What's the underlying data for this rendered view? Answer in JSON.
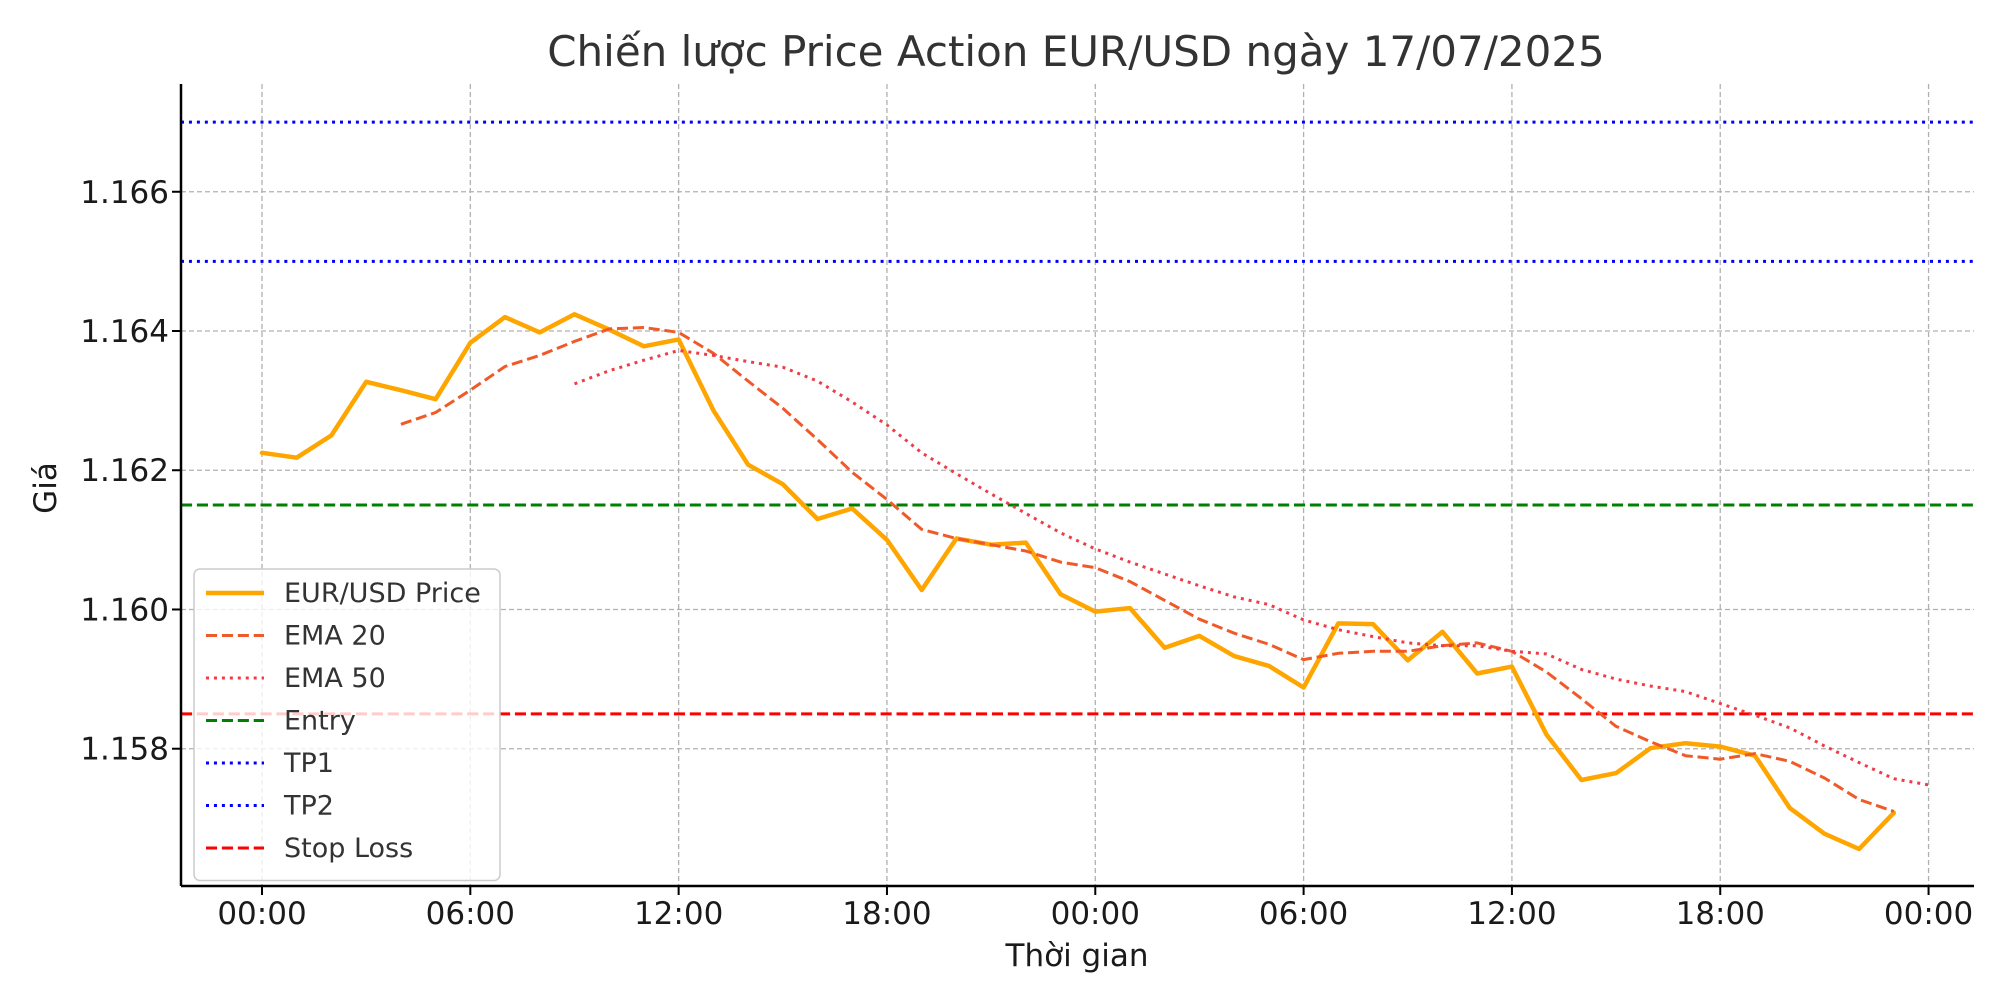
{
  "chart_data": {
    "type": "line",
    "title": "Chiến lược Price Action EUR/USD ngày 17/07/2025",
    "xlabel": "Thời gian",
    "ylabel": "Giá",
    "x_unit": "hours",
    "xlim": [
      -2.3,
      49.3
    ],
    "ylim": [
      1.15617,
      1.16755
    ],
    "x_ticks": [
      {
        "value": 0,
        "label": "00:00"
      },
      {
        "value": 6,
        "label": "06:00"
      },
      {
        "value": 12,
        "label": "12:00"
      },
      {
        "value": 18,
        "label": "18:00"
      },
      {
        "value": 24,
        "label": "00:00"
      },
      {
        "value": 30,
        "label": "06:00"
      },
      {
        "value": 36,
        "label": "12:00"
      },
      {
        "value": 42,
        "label": "18:00"
      },
      {
        "value": 48,
        "label": "00:00"
      }
    ],
    "y_ticks": [
      {
        "value": 1.158,
        "label": "1.158"
      },
      {
        "value": 1.16,
        "label": "1.160"
      },
      {
        "value": 1.162,
        "label": "1.162"
      },
      {
        "value": 1.164,
        "label": "1.164"
      },
      {
        "value": 1.166,
        "label": "1.166"
      }
    ],
    "grid": true,
    "legend_position": "lower-left",
    "series": [
      {
        "name": "EUR/USD Price",
        "color": "#FFA500",
        "style": "solid",
        "x_start": 0,
        "values": [
          1.16225,
          1.16218,
          1.1625,
          1.16327,
          1.16315,
          1.16302,
          1.16383,
          1.1642,
          1.16398,
          1.16424,
          1.16402,
          1.16378,
          1.16388,
          1.16286,
          1.16208,
          1.1618,
          1.1613,
          1.16145,
          1.161,
          1.16028,
          1.16102,
          1.16093,
          1.16096,
          1.16022,
          1.15997,
          1.16002,
          1.15945,
          1.15962,
          1.15933,
          1.15919,
          1.15888,
          1.1598,
          1.15979,
          1.15927,
          1.15968,
          1.15908,
          1.15918,
          1.1582,
          1.15755,
          1.15765,
          1.15801,
          1.15808,
          1.15803,
          1.1579,
          1.15715,
          1.15678,
          1.15656,
          1.15708
        ]
      },
      {
        "name": "EMA 20",
        "color": "#F05A28",
        "style": "dashed",
        "x_start": 4,
        "values": [
          1.16266,
          1.16283,
          1.16315,
          1.16349,
          1.16365,
          1.16385,
          1.16403,
          1.16405,
          1.16398,
          1.16368,
          1.16328,
          1.16289,
          1.16244,
          1.16197,
          1.16158,
          1.16115,
          1.16102,
          1.16093,
          1.16084,
          1.16068,
          1.1606,
          1.1604,
          1.16013,
          1.15986,
          1.15966,
          1.1595,
          1.15928,
          1.15937,
          1.1594,
          1.1594,
          1.15948,
          1.15952,
          1.1594,
          1.1591,
          1.15872,
          1.15832,
          1.1581,
          1.1579,
          1.15785,
          1.15793,
          1.15782,
          1.15758,
          1.15727,
          1.1571
        ]
      },
      {
        "name": "EMA 50",
        "color": "#F03C46",
        "style": "dotted",
        "x_start": 9,
        "values": [
          1.16324,
          1.16343,
          1.16358,
          1.16372,
          1.16365,
          1.16356,
          1.16348,
          1.16328,
          1.16298,
          1.16265,
          1.16225,
          1.16195,
          1.16166,
          1.16138,
          1.1611,
          1.16087,
          1.16068,
          1.16051,
          1.16034,
          1.16018,
          1.16007,
          1.15985,
          1.15971,
          1.15961,
          1.15952,
          1.15948,
          1.15948,
          1.1594,
          1.15936,
          1.15914,
          1.159,
          1.1589,
          1.15882,
          1.15865,
          1.15848,
          1.1583,
          1.15804,
          1.1578,
          1.15757,
          1.15748
        ]
      }
    ],
    "reference_lines": [
      {
        "name": "Entry",
        "value": 1.1615,
        "color": "#008000",
        "style": "dashed"
      },
      {
        "name": "TP1",
        "value": 1.165,
        "color": "#0000FF",
        "style": "dotted"
      },
      {
        "name": "TP2",
        "value": 1.167,
        "color": "#0000FF",
        "style": "dotted"
      },
      {
        "name": "Stop Loss",
        "value": 1.1585,
        "color": "#FF0000",
        "style": "dashed"
      }
    ],
    "legend": [
      {
        "label": "EUR/USD Price",
        "color": "#FFA500",
        "style": "solid"
      },
      {
        "label": "EMA 20",
        "color": "#F05A28",
        "style": "dashed"
      },
      {
        "label": "EMA 50",
        "color": "#F03C46",
        "style": "dotted"
      },
      {
        "label": "Entry",
        "color": "#008000",
        "style": "dashed"
      },
      {
        "label": "TP1",
        "color": "#0000FF",
        "style": "dotted"
      },
      {
        "label": "TP2",
        "color": "#0000FF",
        "style": "dotted"
      },
      {
        "label": "Stop Loss",
        "color": "#FF0000",
        "style": "dashed"
      }
    ]
  }
}
